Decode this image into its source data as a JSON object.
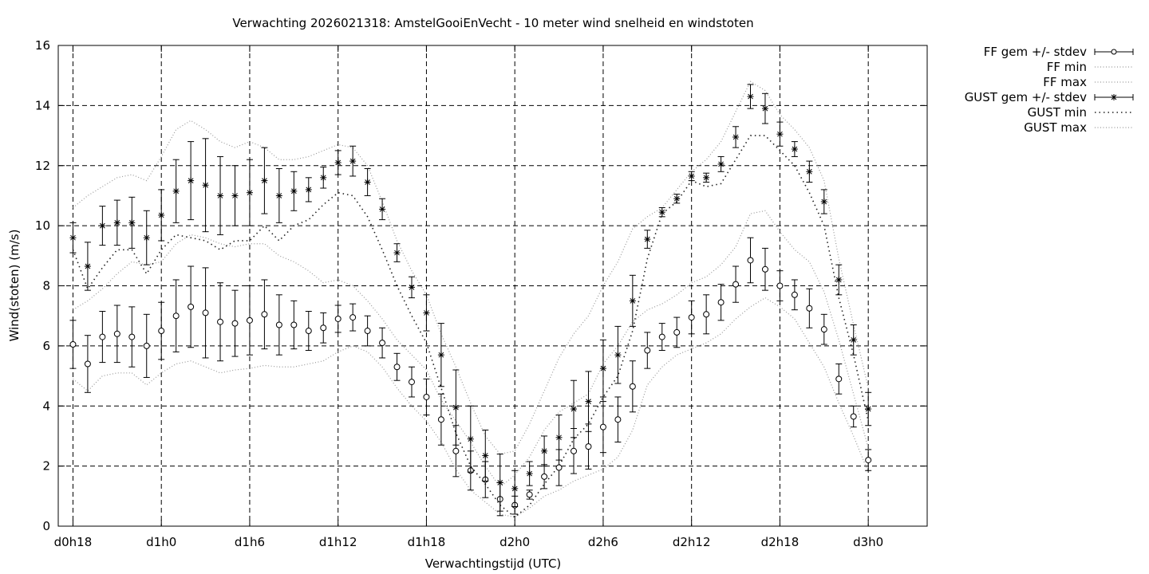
{
  "chart_data": {
    "type": "line",
    "title": "Verwachting 2026021318: AmstelGooiEnVecht - 10 meter wind snelheid en windstoten",
    "xlabel": "Verwachtingstijd (UTC)",
    "ylabel": "Wind(stoten) (m/s)",
    "xlim": [
      -1,
      58
    ],
    "ylim": [
      0,
      16
    ],
    "x_start_hours": 18,
    "yticks": [
      0,
      2,
      4,
      6,
      8,
      10,
      12,
      14,
      16
    ],
    "xticks": [
      {
        "x": 0,
        "label": "d0h18"
      },
      {
        "x": 6,
        "label": "d1h0"
      },
      {
        "x": 12,
        "label": "d1h6"
      },
      {
        "x": 18,
        "label": "d1h12"
      },
      {
        "x": 24,
        "label": "d1h18"
      },
      {
        "x": 30,
        "label": "d2h0"
      },
      {
        "x": 36,
        "label": "d2h6"
      },
      {
        "x": 42,
        "label": "d2h12"
      },
      {
        "x": 48,
        "label": "d2h18"
      },
      {
        "x": 54,
        "label": "d3h0"
      }
    ],
    "grid": true,
    "legend": "outside-right",
    "legend_entries": [
      "FF gem +/- stdev",
      "FF min",
      "FF max",
      "GUST gem +/- stdev",
      "GUST min",
      "GUST max"
    ],
    "series": [
      {
        "name": "FF gem +/- stdev",
        "marker": "circle",
        "mean": [
          6.05,
          5.4,
          6.3,
          6.4,
          6.3,
          6.0,
          6.5,
          7.0,
          7.3,
          7.1,
          6.8,
          6.75,
          6.85,
          7.05,
          6.7,
          6.7,
          6.5,
          6.6,
          6.9,
          6.95,
          6.5,
          6.1,
          5.3,
          4.8,
          4.3,
          3.55,
          2.5,
          1.85,
          1.55,
          0.9,
          0.7,
          1.05,
          1.65,
          1.95,
          2.5,
          2.65,
          3.3,
          3.55,
          4.65,
          5.85,
          6.3,
          6.45,
          6.95,
          7.05,
          7.45,
          8.05,
          8.85,
          8.55,
          8.0,
          7.7,
          7.25,
          6.55,
          4.9,
          3.65,
          2.2
        ],
        "stdev": [
          0.8,
          0.95,
          0.85,
          0.95,
          1.0,
          1.05,
          0.95,
          1.2,
          1.35,
          1.5,
          1.3,
          1.1,
          1.15,
          1.15,
          1.0,
          0.8,
          0.65,
          0.5,
          0.45,
          0.45,
          0.5,
          0.5,
          0.45,
          0.5,
          0.6,
          0.85,
          0.85,
          0.65,
          0.6,
          0.55,
          0.3,
          0.15,
          0.4,
          0.6,
          0.75,
          0.75,
          0.85,
          0.75,
          0.85,
          0.6,
          0.45,
          0.5,
          0.55,
          0.65,
          0.6,
          0.6,
          0.75,
          0.7,
          0.5,
          0.5,
          0.65,
          0.5,
          0.5,
          0.35,
          0.35
        ]
      },
      {
        "name": "FF min",
        "style": "dotted",
        "values": [
          4.9,
          4.5,
          5.0,
          5.1,
          5.1,
          4.7,
          5.1,
          5.4,
          5.5,
          5.3,
          5.1,
          5.2,
          5.25,
          5.35,
          5.3,
          5.3,
          5.4,
          5.5,
          5.8,
          6.0,
          5.8,
          5.3,
          4.6,
          4.0,
          3.5,
          2.8,
          1.9,
          1.2,
          0.8,
          0.4,
          0.3,
          0.6,
          1.0,
          1.2,
          1.5,
          1.7,
          1.9,
          2.3,
          3.2,
          4.7,
          5.3,
          5.7,
          5.9,
          6.1,
          6.4,
          6.9,
          7.3,
          7.6,
          7.3,
          6.9,
          6.1,
          5.3,
          4.1,
          3.0,
          1.8
        ]
      },
      {
        "name": "FF max",
        "style": "dotted",
        "values": [
          7.2,
          7.5,
          7.9,
          8.4,
          8.8,
          8.7,
          8.8,
          9.4,
          9.7,
          9.6,
          9.4,
          9.3,
          9.4,
          9.4,
          9.0,
          8.8,
          8.5,
          8.1,
          8.2,
          8.0,
          7.5,
          6.9,
          6.2,
          5.7,
          5.2,
          4.2,
          3.5,
          2.8,
          2.0,
          1.3,
          1.7,
          2.3,
          3.2,
          3.8,
          4.1,
          4.4,
          5.4,
          6.0,
          6.8,
          7.2,
          7.4,
          7.7,
          8.1,
          8.3,
          8.7,
          9.3,
          10.4,
          10.5,
          9.8,
          9.2,
          8.8,
          7.8,
          6.2,
          4.4,
          2.6
        ]
      },
      {
        "name": "GUST gem +/- stdev",
        "marker": "star",
        "mean": [
          9.6,
          8.65,
          10.0,
          10.1,
          10.1,
          9.6,
          10.35,
          11.15,
          11.5,
          11.35,
          11.0,
          11.0,
          11.1,
          11.5,
          11.0,
          11.15,
          11.2,
          11.6,
          12.1,
          12.15,
          11.45,
          10.55,
          9.1,
          7.95,
          7.1,
          5.7,
          3.95,
          2.9,
          2.35,
          1.45,
          1.25,
          1.75,
          2.5,
          2.95,
          3.9,
          4.15,
          5.25,
          5.7,
          7.5,
          9.55,
          10.45,
          10.9,
          11.65,
          11.6,
          12.05,
          12.95,
          14.3,
          13.9,
          13.05,
          12.55,
          11.8,
          10.8,
          8.2,
          6.2,
          3.9
        ],
        "stdev": [
          0.5,
          0.8,
          0.65,
          0.75,
          0.85,
          0.9,
          0.85,
          1.05,
          1.3,
          1.55,
          1.3,
          1.0,
          1.1,
          1.1,
          0.9,
          0.65,
          0.4,
          0.35,
          0.4,
          0.5,
          0.45,
          0.35,
          0.3,
          0.35,
          0.6,
          1.05,
          1.25,
          1.1,
          0.85,
          0.95,
          0.6,
          0.4,
          0.5,
          0.75,
          0.95,
          1.0,
          0.95,
          0.95,
          0.85,
          0.3,
          0.15,
          0.15,
          0.15,
          0.15,
          0.25,
          0.35,
          0.4,
          0.5,
          0.4,
          0.25,
          0.35,
          0.4,
          0.5,
          0.5,
          0.55
        ]
      },
      {
        "name": "GUST min",
        "style": "dotted",
        "values": [
          9.2,
          7.9,
          8.6,
          9.2,
          9.2,
          8.4,
          9.2,
          9.7,
          9.6,
          9.5,
          9.2,
          9.5,
          9.5,
          10.0,
          9.5,
          10.0,
          10.2,
          10.7,
          11.1,
          11.0,
          10.3,
          9.2,
          8.0,
          7.0,
          6.1,
          4.6,
          3.1,
          2.0,
          1.4,
          0.7,
          0.3,
          0.7,
          1.4,
          2.0,
          2.9,
          3.4,
          4.3,
          5.0,
          6.5,
          8.9,
          10.4,
          10.8,
          11.5,
          11.3,
          11.4,
          12.2,
          13.0,
          13.0,
          12.5,
          12.0,
          11.1,
          10.0,
          7.6,
          5.7,
          3.5
        ]
      },
      {
        "name": "GUST max",
        "style": "dotted",
        "values": [
          10.6,
          11.0,
          11.3,
          11.6,
          11.7,
          11.5,
          12.3,
          13.2,
          13.5,
          13.2,
          12.8,
          12.6,
          12.8,
          12.6,
          12.2,
          12.2,
          12.3,
          12.5,
          12.7,
          12.6,
          12.0,
          10.8,
          9.5,
          8.5,
          7.7,
          6.4,
          5.3,
          4.1,
          3.0,
          2.4,
          2.5,
          3.4,
          4.5,
          5.6,
          6.4,
          7.0,
          8.0,
          8.8,
          9.9,
          10.3,
          10.6,
          11.2,
          11.8,
          12.2,
          12.8,
          13.8,
          14.8,
          14.5,
          13.7,
          13.2,
          12.6,
          11.5,
          8.9,
          6.7,
          4.6
        ]
      }
    ]
  }
}
